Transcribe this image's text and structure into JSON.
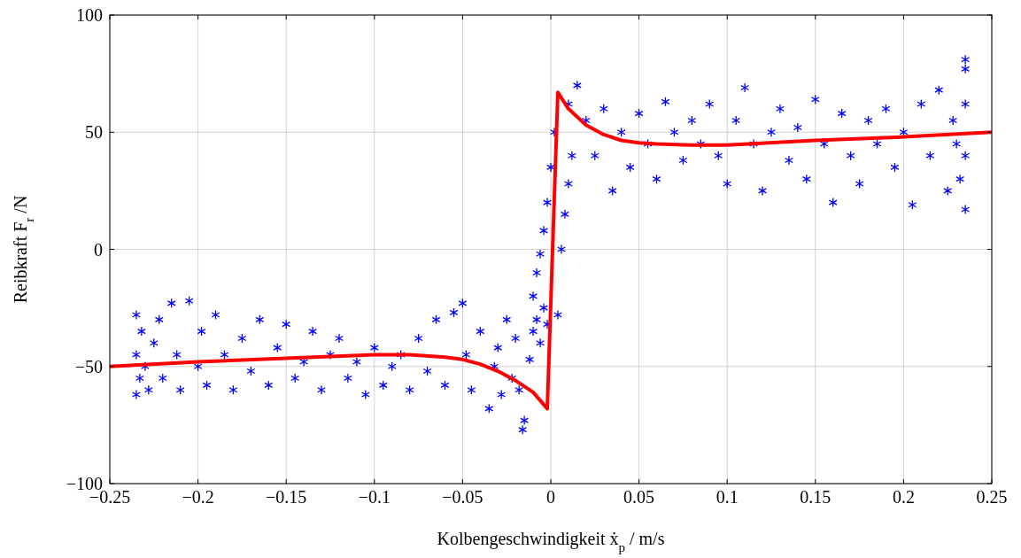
{
  "chart_data": {
    "type": "scatter",
    "xlabel": "Kolbengeschwindigkeit ẋ$_{p}$ / m/s",
    "ylabel": "Reibkraft F$_{r}$ /N",
    "xlim": [
      -0.25,
      0.25
    ],
    "xticks": [
      {
        "value": -0.25,
        "label": "−0.25"
      },
      {
        "value": -0.2,
        "label": "−0.2"
      },
      {
        "value": -0.15,
        "label": "−0.15"
      },
      {
        "value": -0.1,
        "label": "−0.1"
      },
      {
        "value": -0.05,
        "label": "−0.05"
      },
      0,
      0.05,
      0.1,
      0.15,
      0.2,
      0.25
    ],
    "ylim": [
      -100,
      100
    ],
    "yticks": [
      {
        "value": -100,
        "label": "−100"
      },
      {
        "value": -50,
        "label": "−50"
      },
      0,
      50,
      100
    ],
    "grid": true,
    "series": [
      {
        "color": "#0000ff",
        "marker": "cross",
        "x": [
          -0.235,
          -0.235,
          -0.235,
          -0.233,
          -0.232,
          -0.23,
          -0.228,
          -0.225,
          -0.222,
          -0.22,
          -0.215,
          -0.212,
          -0.21,
          -0.205,
          -0.2,
          -0.198,
          -0.195,
          -0.19,
          -0.185,
          -0.18,
          -0.175,
          -0.17,
          -0.165,
          -0.16,
          -0.155,
          -0.15,
          -0.145,
          -0.14,
          -0.135,
          -0.13,
          -0.125,
          -0.12,
          -0.115,
          -0.11,
          -0.105,
          -0.1,
          -0.095,
          -0.09,
          -0.085,
          -0.08,
          -0.075,
          -0.07,
          -0.065,
          -0.06,
          -0.055,
          -0.05,
          -0.048,
          -0.045,
          -0.04,
          -0.035,
          -0.032,
          -0.03,
          -0.028,
          -0.025,
          -0.022,
          -0.02,
          -0.018,
          -0.016,
          -0.015,
          -0.012,
          -0.01,
          -0.008,
          -0.006,
          -0.004,
          -0.002,
          -0.01,
          -0.008,
          -0.006,
          -0.004,
          -0.002,
          0,
          0.002,
          0.004,
          0.006,
          0.008,
          0.01,
          0.012,
          0.01,
          0.015,
          0.02,
          0.025,
          0.03,
          0.035,
          0.04,
          0.045,
          0.05,
          0.055,
          0.06,
          0.065,
          0.07,
          0.075,
          0.08,
          0.085,
          0.09,
          0.095,
          0.1,
          0.105,
          0.11,
          0.115,
          0.12,
          0.125,
          0.13,
          0.135,
          0.14,
          0.145,
          0.15,
          0.155,
          0.16,
          0.165,
          0.17,
          0.175,
          0.18,
          0.185,
          0.19,
          0.195,
          0.2,
          0.205,
          0.21,
          0.215,
          0.22,
          0.225,
          0.228,
          0.23,
          0.232,
          0.235,
          0.235,
          0.235,
          0.235,
          0.235
        ],
        "values": [
          -28,
          -62,
          -45,
          -55,
          -35,
          -50,
          -60,
          -40,
          -30,
          -55,
          -23,
          -45,
          -60,
          -22,
          -50,
          -35,
          -58,
          -28,
          -45,
          -60,
          -38,
          -52,
          -30,
          -58,
          -42,
          -32,
          -55,
          -48,
          -35,
          -60,
          -45,
          -38,
          -55,
          -48,
          -62,
          -42,
          -58,
          -50,
          -45,
          -60,
          -38,
          -52,
          -30,
          -58,
          -27,
          -23,
          -45,
          -60,
          -35,
          -68,
          -50,
          -42,
          -62,
          -30,
          -55,
          -38,
          -60,
          -77,
          -73,
          -47,
          -35,
          -30,
          -40,
          -25,
          -32,
          -20,
          -10,
          -2,
          8,
          20,
          35,
          50,
          -28,
          0,
          15,
          28,
          40,
          62,
          70,
          55,
          40,
          60,
          25,
          50,
          35,
          58,
          45,
          30,
          63,
          50,
          38,
          55,
          45,
          62,
          40,
          28,
          55,
          69,
          45,
          25,
          50,
          60,
          38,
          52,
          30,
          64,
          45,
          20,
          58,
          40,
          28,
          55,
          45,
          60,
          35,
          50,
          19,
          62,
          40,
          68,
          25,
          55,
          45,
          30,
          81,
          77,
          17,
          62,
          40
        ]
      },
      {
        "type": "line",
        "color": "#ff0000",
        "marker": "none",
        "x": [
          -0.25,
          -0.2,
          -0.15,
          -0.1,
          -0.08,
          -0.06,
          -0.05,
          -0.04,
          -0.03,
          -0.02,
          -0.01,
          -0.002,
          0.004,
          0.01,
          0.02,
          0.03,
          0.04,
          0.05,
          0.06,
          0.08,
          0.1,
          0.15,
          0.2,
          0.25
        ],
        "values": [
          -50,
          -48,
          -46.5,
          -45,
          -45,
          -46,
          -47,
          -49,
          -52,
          -56,
          -61,
          -68,
          67,
          60,
          53,
          49,
          46.5,
          45.5,
          45,
          44.5,
          44.5,
          46.5,
          48,
          50
        ]
      }
    ]
  }
}
